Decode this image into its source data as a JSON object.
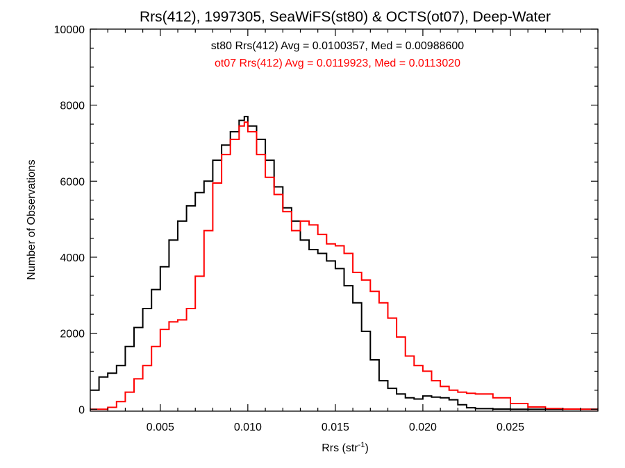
{
  "chart_data": {
    "type": "line",
    "title": "Rrs(412), 1997305, SeaWiFS(st80) & OCTS(ot07), Deep-Water",
    "xlabel_base": "Rrs (str",
    "xlabel_sup": "-1",
    "xlabel_close": ")",
    "ylabel": "Number of Observations",
    "xlim": [
      0.001,
      0.03
    ],
    "ylim": [
      -50,
      10000
    ],
    "xticks": [
      0.005,
      0.01,
      0.015,
      0.02,
      0.025
    ],
    "xtick_labels": [
      "0.005",
      "0.010",
      "0.015",
      "0.020",
      "0.025"
    ],
    "yticks": [
      0,
      2000,
      4000,
      6000,
      8000,
      10000
    ],
    "ytick_labels": [
      "0",
      "2000",
      "4000",
      "6000",
      "8000",
      "10000"
    ],
    "grid": false,
    "annotations": [
      {
        "text": "st80 Rrs(412) Avg = 0.0100357, Med = 0.00988600",
        "color": "#000000"
      },
      {
        "text": "ot07 Rrs(412) Avg = 0.0119923, Med = 0.0113020",
        "color": "#ff0000"
      }
    ],
    "series": [
      {
        "color": "#000000",
        "x": [
          0.001,
          0.0015,
          0.002,
          0.0025,
          0.003,
          0.0035,
          0.004,
          0.0045,
          0.005,
          0.0055,
          0.006,
          0.0065,
          0.007,
          0.0075,
          0.008,
          0.0085,
          0.009,
          0.0095,
          0.0098,
          0.01,
          0.0105,
          0.011,
          0.0115,
          0.012,
          0.0125,
          0.013,
          0.0135,
          0.014,
          0.0145,
          0.015,
          0.0155,
          0.016,
          0.0165,
          0.017,
          0.0175,
          0.018,
          0.0185,
          0.019,
          0.0195,
          0.02,
          0.0205,
          0.021,
          0.0215,
          0.022,
          0.0225,
          0.023,
          0.024,
          0.025,
          0.026,
          0.027,
          0.028,
          0.03
        ],
        "y": [
          500,
          850,
          950,
          1150,
          1650,
          2150,
          2650,
          3150,
          3750,
          4450,
          4950,
          5350,
          5700,
          6000,
          6550,
          6950,
          7300,
          7600,
          7700,
          7450,
          7100,
          6550,
          5850,
          5300,
          4950,
          4450,
          4200,
          4100,
          3900,
          3700,
          3250,
          2800,
          2050,
          1300,
          750,
          550,
          400,
          300,
          270,
          350,
          320,
          300,
          250,
          120,
          40,
          15,
          5,
          0,
          0,
          0,
          0,
          0
        ]
      },
      {
        "color": "#ff0000",
        "x": [
          0.001,
          0.0015,
          0.002,
          0.0025,
          0.003,
          0.0035,
          0.004,
          0.0045,
          0.005,
          0.0055,
          0.006,
          0.0065,
          0.007,
          0.0075,
          0.008,
          0.0085,
          0.009,
          0.0095,
          0.0098,
          0.01,
          0.0105,
          0.011,
          0.0115,
          0.012,
          0.0125,
          0.013,
          0.0135,
          0.014,
          0.0145,
          0.015,
          0.0155,
          0.016,
          0.0165,
          0.017,
          0.0175,
          0.018,
          0.0185,
          0.019,
          0.0195,
          0.02,
          0.0205,
          0.021,
          0.0215,
          0.022,
          0.0225,
          0.023,
          0.024,
          0.025,
          0.026,
          0.027,
          0.028,
          0.029,
          0.03
        ],
        "y": [
          0,
          0,
          50,
          200,
          450,
          800,
          1150,
          1650,
          2100,
          2300,
          2350,
          2650,
          3500,
          4700,
          5950,
          6700,
          7100,
          7450,
          7550,
          7300,
          6700,
          6100,
          5650,
          5200,
          4700,
          4950,
          4850,
          4600,
          4350,
          4300,
          4100,
          3600,
          3400,
          3100,
          2800,
          2400,
          1900,
          1400,
          1150,
          1000,
          750,
          600,
          500,
          450,
          420,
          400,
          300,
          150,
          60,
          20,
          5,
          0,
          0
        ]
      }
    ]
  }
}
